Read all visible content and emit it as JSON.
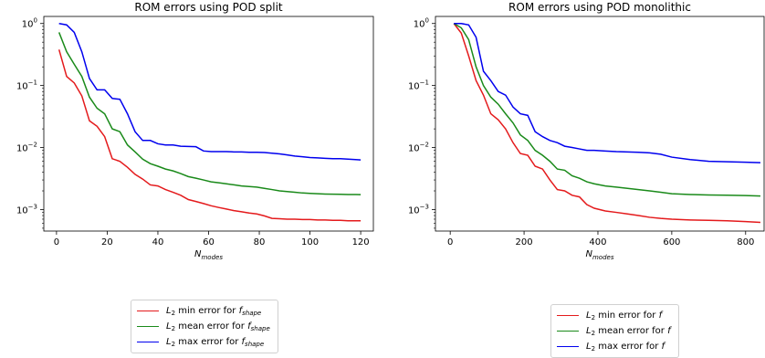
{
  "chart_data": [
    {
      "type": "line",
      "title": "ROM errors using POD split",
      "xlabel": "N",
      "xlabel_subscript": "modes",
      "ylabel": "",
      "yscale": "log",
      "xlim": [
        -5,
        125
      ],
      "ylim": [
        0.00045,
        1.3
      ],
      "xticks": [
        0,
        20,
        40,
        60,
        80,
        100,
        120
      ],
      "yticks": [
        {
          "value": 0.001,
          "base": "10",
          "exp": "−3"
        },
        {
          "value": 0.01,
          "base": "10",
          "exp": "−2"
        },
        {
          "value": 0.1,
          "base": "10",
          "exp": "−1"
        },
        {
          "value": 1,
          "base": "10",
          "exp": "0"
        }
      ],
      "grid": false,
      "legend_position": "below-plot",
      "x": [
        1,
        4,
        7,
        10,
        13,
        16,
        19,
        22,
        25,
        28,
        31,
        34,
        37,
        40,
        43,
        46,
        49,
        52,
        55,
        58,
        61,
        64,
        67,
        70,
        73,
        76,
        79,
        82,
        85,
        88,
        91,
        94,
        97,
        100,
        103,
        106,
        109,
        112,
        115,
        118,
        120
      ],
      "series": [
        {
          "name": "min",
          "label_prefix": "L",
          "label_sub": "2",
          "label_text": " min error for ",
          "label_var": "f",
          "label_var_sub": "shape",
          "color": "#e41a1c",
          "values": [
            0.38,
            0.14,
            0.11,
            0.068,
            0.027,
            0.022,
            0.015,
            0.0066,
            0.006,
            0.0048,
            0.0037,
            0.0031,
            0.0025,
            0.0024,
            0.0021,
            0.0019,
            0.0017,
            0.00145,
            0.00135,
            0.00125,
            0.00115,
            0.00108,
            0.00102,
            0.00096,
            0.00092,
            0.00088,
            0.00085,
            0.00079,
            0.00072,
            0.00071,
            0.0007,
            0.0007,
            0.00069,
            0.00069,
            0.00068,
            0.00068,
            0.00067,
            0.00067,
            0.00066,
            0.00066,
            0.00066
          ]
        },
        {
          "name": "mean",
          "label_prefix": "L",
          "label_sub": "2",
          "label_text": " mean error for ",
          "label_var": "f",
          "label_var_sub": "shape",
          "color": "#1a8a1a",
          "values": [
            0.72,
            0.35,
            0.22,
            0.14,
            0.065,
            0.043,
            0.035,
            0.02,
            0.018,
            0.011,
            0.0085,
            0.0065,
            0.0055,
            0.005,
            0.0045,
            0.0042,
            0.0038,
            0.0034,
            0.0032,
            0.003,
            0.0028,
            0.0027,
            0.0026,
            0.0025,
            0.0024,
            0.00235,
            0.0023,
            0.0022,
            0.0021,
            0.002,
            0.00195,
            0.0019,
            0.00185,
            0.00182,
            0.0018,
            0.00178,
            0.00177,
            0.00176,
            0.00175,
            0.00175,
            0.00174
          ]
        },
        {
          "name": "max",
          "label_prefix": "L",
          "label_sub": "2",
          "label_text": " max error for ",
          "label_var": "f",
          "label_var_sub": "shape",
          "color": "#0000ee",
          "values": [
            1.0,
            0.95,
            0.72,
            0.35,
            0.13,
            0.085,
            0.085,
            0.062,
            0.06,
            0.035,
            0.018,
            0.013,
            0.013,
            0.0115,
            0.011,
            0.011,
            0.0105,
            0.0104,
            0.0103,
            0.0088,
            0.0086,
            0.0086,
            0.0086,
            0.0085,
            0.0085,
            0.0084,
            0.0084,
            0.0083,
            0.0081,
            0.0079,
            0.0076,
            0.0073,
            0.0071,
            0.0069,
            0.0068,
            0.0067,
            0.0066,
            0.0066,
            0.0065,
            0.0064,
            0.0063
          ]
        }
      ]
    },
    {
      "type": "line",
      "title": "ROM errors using POD monolithic",
      "xlabel": "N",
      "xlabel_subscript": "modes",
      "ylabel": "",
      "yscale": "log",
      "xlim": [
        -40,
        850
      ],
      "ylim": [
        0.00045,
        1.3
      ],
      "xticks": [
        0,
        200,
        400,
        600,
        800
      ],
      "yticks": [
        {
          "value": 0.001,
          "base": "10",
          "exp": "−3"
        },
        {
          "value": 0.01,
          "base": "10",
          "exp": "−2"
        },
        {
          "value": 0.1,
          "base": "10",
          "exp": "−1"
        },
        {
          "value": 1,
          "base": "10",
          "exp": "0"
        }
      ],
      "grid": false,
      "legend_position": "below-plot",
      "x": [
        10,
        30,
        50,
        70,
        90,
        110,
        130,
        150,
        170,
        190,
        210,
        230,
        250,
        270,
        290,
        310,
        330,
        350,
        370,
        390,
        420,
        450,
        480,
        510,
        540,
        570,
        600,
        650,
        700,
        750,
        800,
        840
      ],
      "series": [
        {
          "name": "min",
          "label_prefix": "L",
          "label_sub": "2",
          "label_text": " min error for ",
          "label_var": "f",
          "label_var_sub": "",
          "color": "#e41a1c",
          "values": [
            1.0,
            0.7,
            0.3,
            0.12,
            0.07,
            0.035,
            0.028,
            0.02,
            0.012,
            0.008,
            0.0075,
            0.005,
            0.0045,
            0.003,
            0.0021,
            0.002,
            0.0017,
            0.0016,
            0.0012,
            0.00105,
            0.00095,
            0.0009,
            0.00085,
            0.0008,
            0.00075,
            0.00072,
            0.0007,
            0.00068,
            0.00067,
            0.00066,
            0.00064,
            0.00062
          ]
        },
        {
          "name": "mean",
          "label_prefix": "L",
          "label_sub": "2",
          "label_text": " mean error for ",
          "label_var": "f",
          "label_var_sub": "",
          "color": "#1a8a1a",
          "values": [
            1.0,
            0.85,
            0.55,
            0.2,
            0.1,
            0.065,
            0.05,
            0.035,
            0.025,
            0.016,
            0.013,
            0.009,
            0.0075,
            0.006,
            0.0045,
            0.0043,
            0.0035,
            0.0032,
            0.0028,
            0.0026,
            0.0024,
            0.0023,
            0.0022,
            0.0021,
            0.002,
            0.0019,
            0.0018,
            0.00175,
            0.00172,
            0.0017,
            0.00168,
            0.00165
          ]
        },
        {
          "name": "max",
          "label_prefix": "L",
          "label_sub": "2",
          "label_text": " max error for ",
          "label_var": "f",
          "label_var_sub": "",
          "color": "#0000ee",
          "values": [
            1.0,
            1.0,
            0.95,
            0.6,
            0.17,
            0.12,
            0.08,
            0.07,
            0.045,
            0.035,
            0.033,
            0.018,
            0.015,
            0.013,
            0.012,
            0.0105,
            0.01,
            0.0095,
            0.009,
            0.009,
            0.0088,
            0.0086,
            0.0085,
            0.0084,
            0.0082,
            0.0078,
            0.007,
            0.0064,
            0.006,
            0.0059,
            0.0058,
            0.0057
          ]
        }
      ]
    }
  ]
}
